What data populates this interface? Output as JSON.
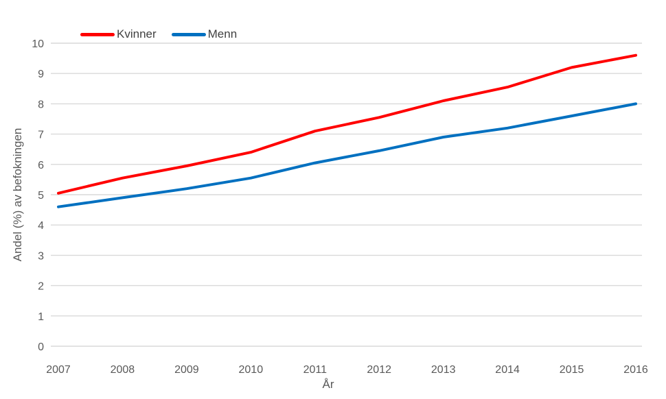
{
  "chart_data": {
    "type": "line",
    "x": [
      2007,
      2008,
      2009,
      2010,
      2011,
      2012,
      2013,
      2014,
      2015,
      2016
    ],
    "series": [
      {
        "name": "Kvinner",
        "color": "#FF0000",
        "values": [
          5.05,
          5.55,
          5.95,
          6.4,
          7.1,
          7.55,
          8.1,
          8.55,
          9.2,
          9.6
        ]
      },
      {
        "name": "Menn",
        "color": "#0070C0",
        "values": [
          4.6,
          4.9,
          5.2,
          5.55,
          6.05,
          6.45,
          6.9,
          7.2,
          7.6,
          8.0
        ]
      }
    ],
    "title": "",
    "xlabel": "År",
    "ylabel": "Andel (%) av befokningen",
    "ylim": [
      0,
      10
    ],
    "ytick_step": 1,
    "yticks": [
      0,
      1,
      2,
      3,
      4,
      5,
      6,
      7,
      8,
      9,
      10
    ],
    "grid": "horizontal",
    "legend_position": "top-left",
    "gridline_color": "#D9D9D9",
    "tick_label_color": "#595959",
    "axis_title_color": "#595959",
    "legend_text_color": "#404040",
    "background": "#FFFFFF"
  }
}
